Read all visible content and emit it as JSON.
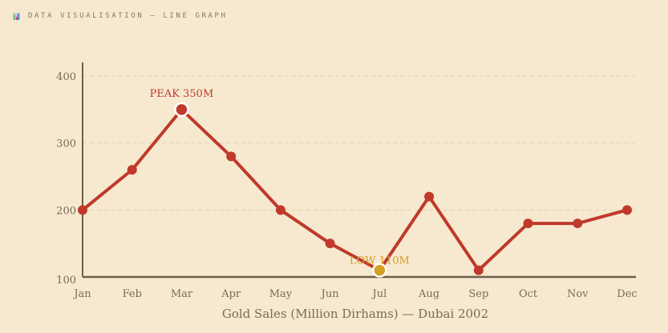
{
  "header": {
    "title": "DATA VISUALISATION — LINE GRAPH",
    "icon": "bar-chart-icon"
  },
  "chart_data": {
    "type": "line",
    "title": "",
    "xlabel": "Gold Sales (Million Dirhams) — Dubai 2002",
    "ylabel": "",
    "categories": [
      "Jan",
      "Feb",
      "Mar",
      "Apr",
      "May",
      "Jun",
      "Jul",
      "Aug",
      "Sep",
      "Oct",
      "Nov",
      "Dec"
    ],
    "values": [
      200,
      260,
      350,
      280,
      200,
      150,
      110,
      220,
      110,
      180,
      180,
      200
    ],
    "ylim": [
      100,
      400
    ],
    "yticks": [
      100,
      200,
      300,
      400
    ],
    "grid": true,
    "annotations": [
      {
        "index": 2,
        "text": "PEAK 350M",
        "color": "#c0392b"
      },
      {
        "index": 6,
        "text": "LOW 110M",
        "color": "#d4a020"
      }
    ],
    "colors": {
      "line": "#c0392b",
      "low": "#d4a020",
      "axis": "#6e5f4b",
      "grid": "#e2d3b6",
      "text": "#7a6a58"
    }
  }
}
